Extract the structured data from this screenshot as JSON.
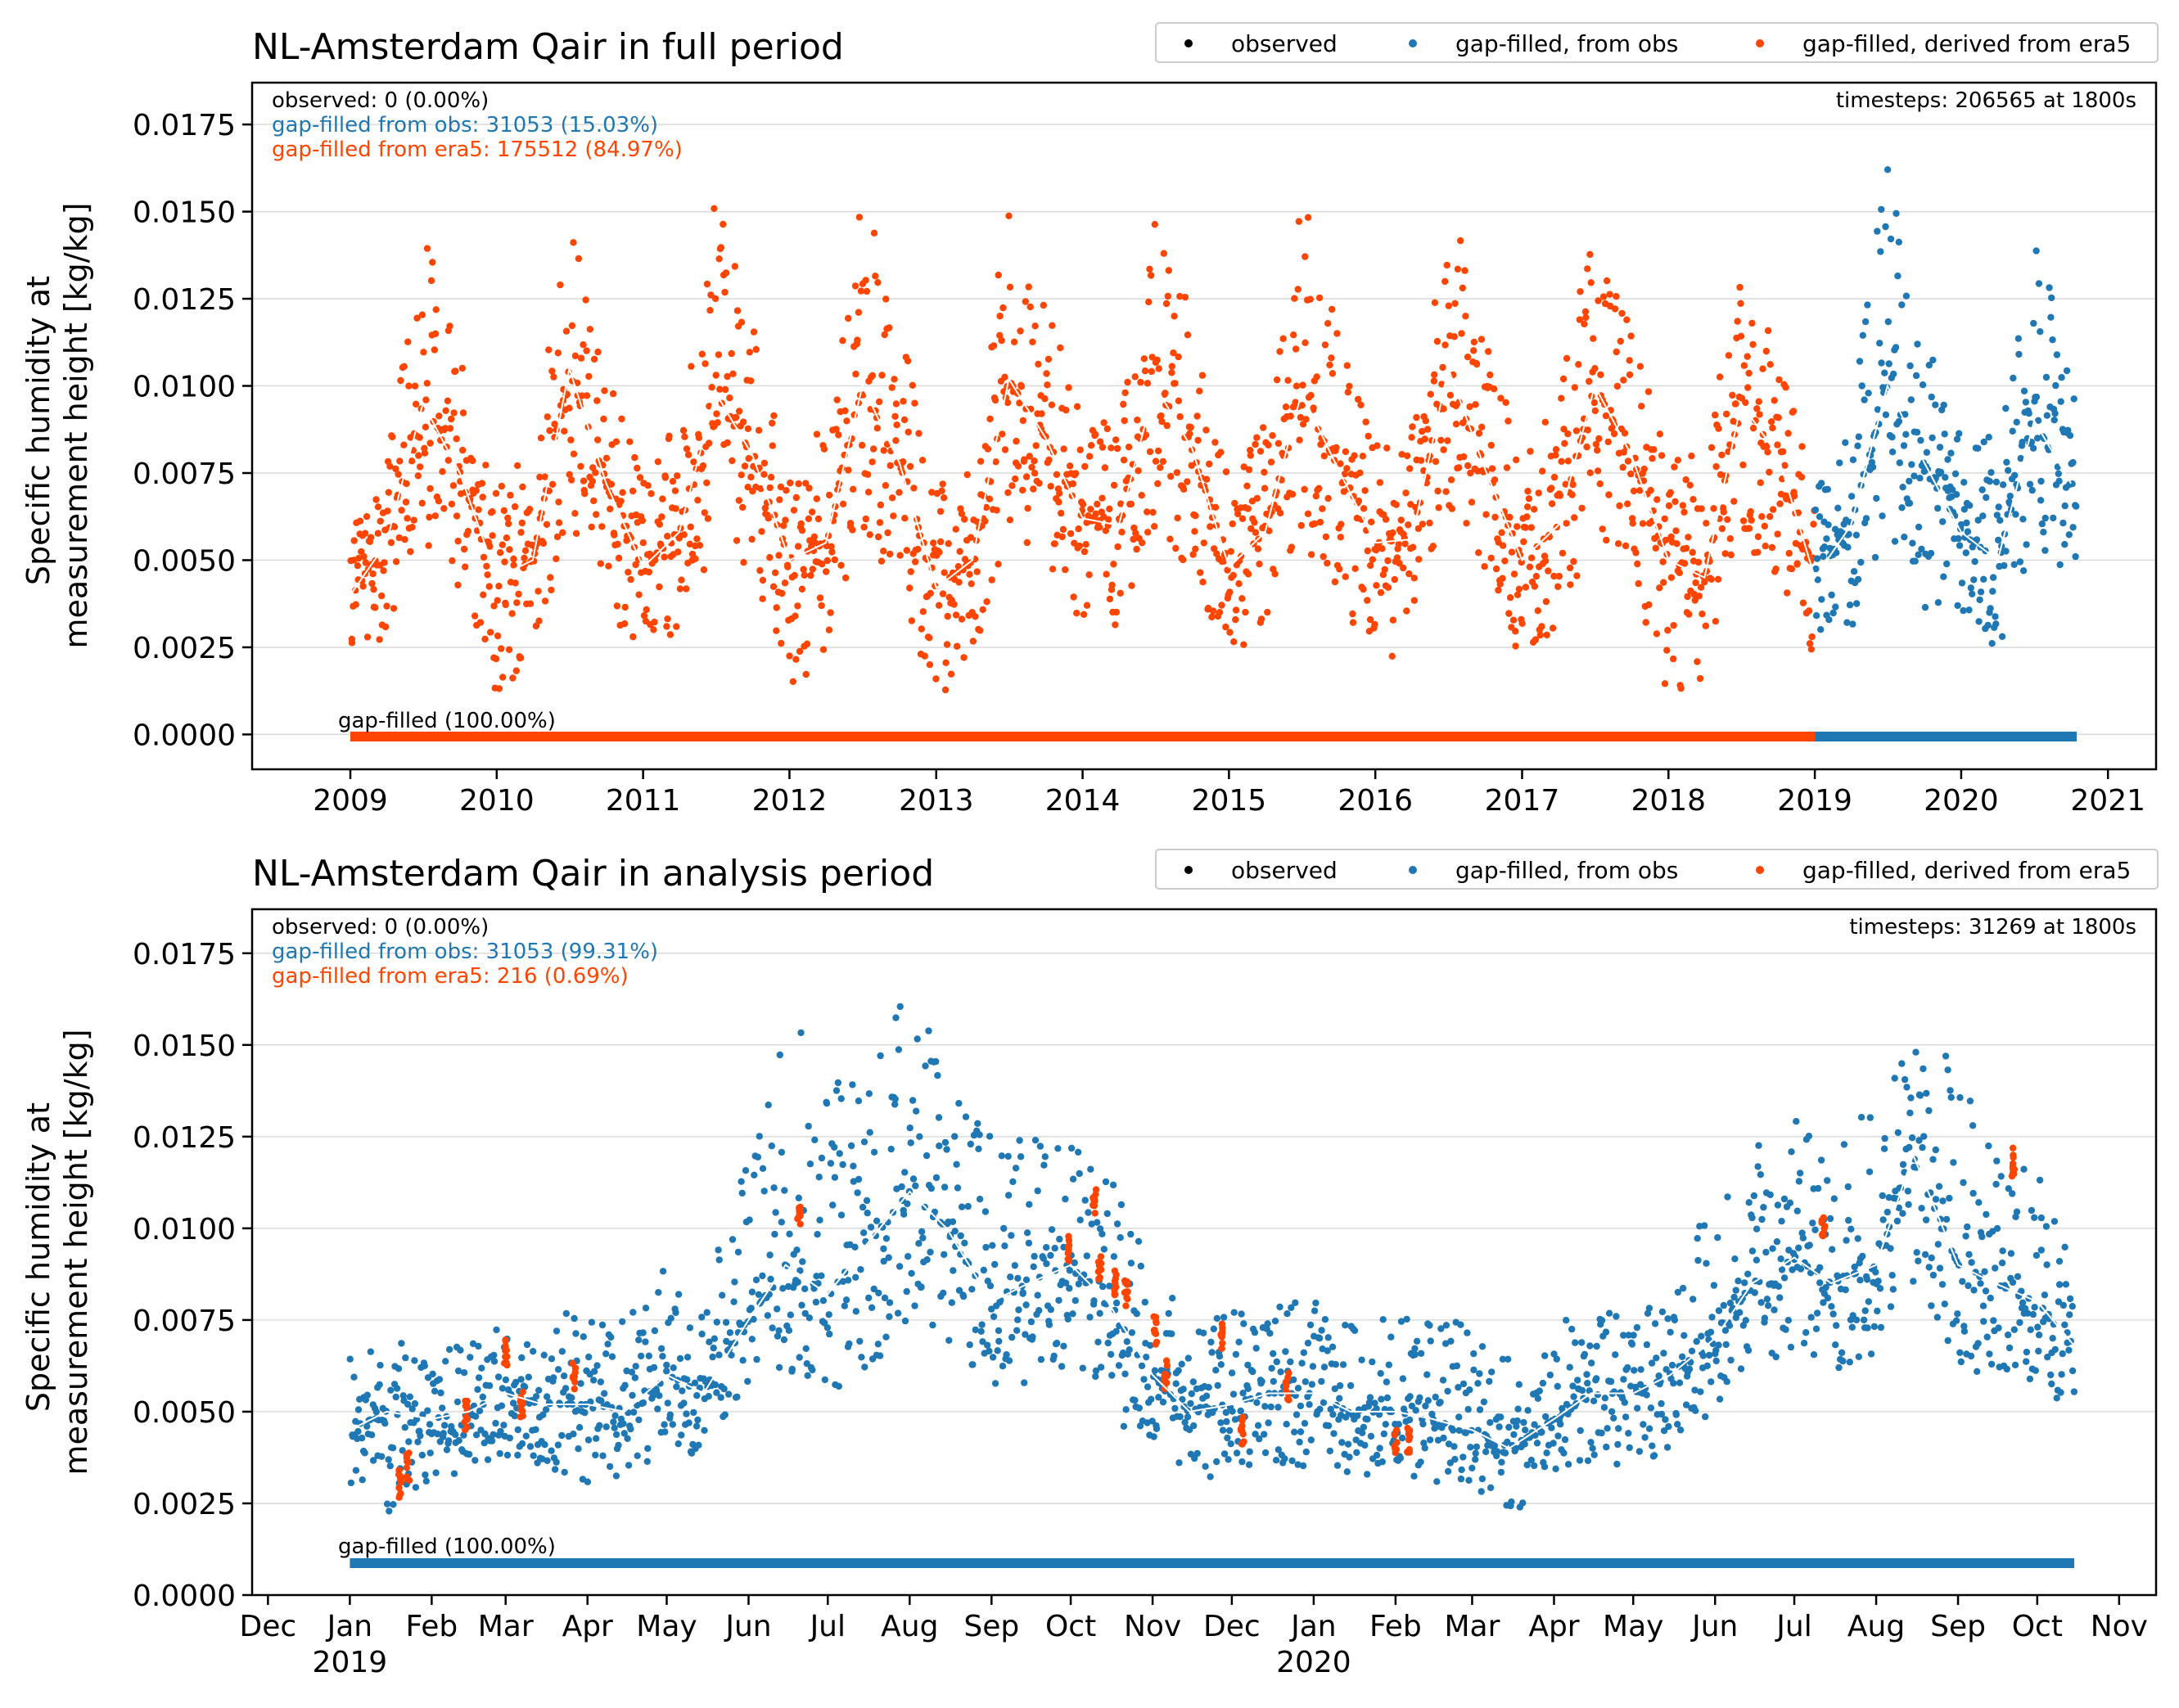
{
  "colors": {
    "observed": "#000000",
    "gapfilled_obs": "#1f77b4",
    "gapfilled_era5": "#ff4500",
    "rolling_mean": "#ffffff",
    "grid": "#d9d9d9"
  },
  "legend": {
    "observed": "observed",
    "gapfilled_obs": "gap-filled, from obs",
    "gapfilled_era5": "gap-filled, derived from era5"
  },
  "chart_data": [
    {
      "type": "scatter",
      "title": "NL-Amsterdam Qair in full period",
      "ylabel": [
        "Specific humidity at",
        "measurement height [kg/kg]"
      ],
      "ylim": [
        -0.001,
        0.0187
      ],
      "yticks": [
        "0.0000",
        "0.0025",
        "0.0050",
        "0.0075",
        "0.0100",
        "0.0125",
        "0.0150",
        "0.0175"
      ],
      "xlim": [
        "2008-05-01",
        "2021-05-01"
      ],
      "xticks": [
        "2009",
        "2010",
        "2011",
        "2012",
        "2013",
        "2014",
        "2015",
        "2016",
        "2017",
        "2018",
        "2019",
        "2020",
        "2021"
      ],
      "stats": {
        "observed": "observed: 0 (0.00%)",
        "obs": "gap-filled from obs: 31053 (15.03%)",
        "era5": "gap-filled from era5: 175512 (84.97%)",
        "timesteps": "timesteps: 206565 at 1800s"
      },
      "bar_label": "gap-filled (100.00%)",
      "grid": "horizontal",
      "legend_position": "top-right, above plot",
      "series_ranges": [
        {
          "name": "gap-filled, derived from era5",
          "start": "2009-01-01",
          "end": "2019-01-01"
        },
        {
          "name": "gap-filled, from obs",
          "start": "2019-01-01",
          "end": "2020-10-15"
        }
      ],
      "x": [
        "2009-01",
        "2009-04",
        "2009-07",
        "2009-10",
        "2010-01",
        "2010-04",
        "2010-07",
        "2010-10",
        "2011-01",
        "2011-04",
        "2011-07",
        "2011-10",
        "2012-01",
        "2012-04",
        "2012-07",
        "2012-10",
        "2013-01",
        "2013-04",
        "2013-07",
        "2013-10",
        "2014-01",
        "2014-04",
        "2014-07",
        "2014-10",
        "2015-01",
        "2015-04",
        "2015-07",
        "2015-10",
        "2016-01",
        "2016-04",
        "2016-07",
        "2016-10",
        "2017-01",
        "2017-04",
        "2017-07",
        "2017-10",
        "2018-01",
        "2018-04",
        "2018-07",
        "2018-10",
        "2019-01",
        "2019-04",
        "2019-07",
        "2019-10",
        "2020-01",
        "2020-04",
        "2020-07",
        "2020-10"
      ],
      "mean": [
        0.004,
        0.0055,
        0.0095,
        0.0075,
        0.0045,
        0.005,
        0.0105,
        0.0072,
        0.0048,
        0.0058,
        0.0098,
        0.008,
        0.005,
        0.0055,
        0.01,
        0.0078,
        0.0042,
        0.005,
        0.0102,
        0.0085,
        0.0062,
        0.006,
        0.01,
        0.0082,
        0.0048,
        0.0058,
        0.0098,
        0.0076,
        0.0055,
        0.0056,
        0.0105,
        0.0076,
        0.005,
        0.006,
        0.01,
        0.008,
        0.005,
        0.0045,
        0.0095,
        0.008,
        0.0045,
        0.006,
        0.01,
        0.0078,
        0.0058,
        0.005,
        0.009,
        0.0072
      ],
      "upper": [
        0.006,
        0.008,
        0.0145,
        0.011,
        0.007,
        0.0085,
        0.015,
        0.0105,
        0.0075,
        0.009,
        0.0155,
        0.012,
        0.0075,
        0.009,
        0.016,
        0.012,
        0.007,
        0.0085,
        0.0155,
        0.0125,
        0.009,
        0.009,
        0.015,
        0.012,
        0.0075,
        0.009,
        0.0165,
        0.0115,
        0.0085,
        0.009,
        0.0155,
        0.0115,
        0.008,
        0.0095,
        0.015,
        0.012,
        0.008,
        0.008,
        0.0135,
        0.0115,
        0.007,
        0.009,
        0.0168,
        0.0115,
        0.0085,
        0.009,
        0.015,
        0.0105
      ],
      "lower": [
        0.0015,
        0.003,
        0.0055,
        0.004,
        0.001,
        0.002,
        0.006,
        0.0035,
        0.002,
        0.003,
        0.0055,
        0.0045,
        0.0008,
        0.0025,
        0.006,
        0.004,
        0.001,
        0.002,
        0.006,
        0.005,
        0.003,
        0.003,
        0.006,
        0.0045,
        0.002,
        0.003,
        0.0055,
        0.004,
        0.002,
        0.0025,
        0.0065,
        0.004,
        0.002,
        0.003,
        0.006,
        0.0045,
        0.001,
        0.0015,
        0.0055,
        0.0045,
        0.002,
        0.003,
        0.006,
        0.0035,
        0.003,
        0.002,
        0.0055,
        0.0045
      ]
    },
    {
      "type": "scatter",
      "title": "NL-Amsterdam Qair in analysis period",
      "ylabel": [
        "Specific humidity at",
        "measurement height [kg/kg]"
      ],
      "ylim": [
        0.0,
        0.0187
      ],
      "yticks": [
        "0.0000",
        "0.0025",
        "0.0050",
        "0.0075",
        "0.0100",
        "0.0125",
        "0.0150",
        "0.0175"
      ],
      "xlim": [
        "2018-11-25",
        "2020-11-15"
      ],
      "xticks": [
        {
          "date": "2018-12-01",
          "label": "Dec"
        },
        {
          "date": "2019-01-01",
          "label": "Jan",
          "year": "2019"
        },
        {
          "date": "2019-02-01",
          "label": "Feb"
        },
        {
          "date": "2019-03-01",
          "label": "Mar"
        },
        {
          "date": "2019-04-01",
          "label": "Apr"
        },
        {
          "date": "2019-05-01",
          "label": "May"
        },
        {
          "date": "2019-06-01",
          "label": "Jun"
        },
        {
          "date": "2019-07-01",
          "label": "Jul"
        },
        {
          "date": "2019-08-01",
          "label": "Aug"
        },
        {
          "date": "2019-09-01",
          "label": "Sep"
        },
        {
          "date": "2019-10-01",
          "label": "Oct"
        },
        {
          "date": "2019-11-01",
          "label": "Nov"
        },
        {
          "date": "2019-12-01",
          "label": "Dec"
        },
        {
          "date": "2020-01-01",
          "label": "Jan",
          "year": "2020"
        },
        {
          "date": "2020-02-01",
          "label": "Feb"
        },
        {
          "date": "2020-03-01",
          "label": "Mar"
        },
        {
          "date": "2020-04-01",
          "label": "Apr"
        },
        {
          "date": "2020-05-01",
          "label": "May"
        },
        {
          "date": "2020-06-01",
          "label": "Jun"
        },
        {
          "date": "2020-07-01",
          "label": "Jul"
        },
        {
          "date": "2020-08-01",
          "label": "Aug"
        },
        {
          "date": "2020-09-01",
          "label": "Sep"
        },
        {
          "date": "2020-10-01",
          "label": "Oct"
        },
        {
          "date": "2020-11-01",
          "label": "Nov"
        }
      ],
      "stats": {
        "observed": "observed: 0 (0.00%)",
        "obs": "gap-filled from obs: 31053 (99.31%)",
        "era5": "gap-filled from era5: 216 (0.69%)",
        "timesteps": "timesteps: 31269 at 1800s"
      },
      "bar_label": "gap-filled (100.00%)",
      "grid": "horizontal",
      "legend_position": "top-right, above plot",
      "series_ranges": [
        {
          "name": "gap-filled, from obs",
          "start": "2019-01-01",
          "end": "2020-10-15"
        }
      ],
      "x": [
        "2019-01-01",
        "2019-01-15",
        "2019-02-01",
        "2019-02-15",
        "2019-03-01",
        "2019-03-15",
        "2019-04-01",
        "2019-04-15",
        "2019-05-01",
        "2019-05-15",
        "2019-06-01",
        "2019-06-15",
        "2019-07-01",
        "2019-07-15",
        "2019-08-01",
        "2019-08-15",
        "2019-09-01",
        "2019-09-15",
        "2019-10-01",
        "2019-10-15",
        "2019-11-01",
        "2019-11-15",
        "2019-12-01",
        "2019-12-15",
        "2020-01-01",
        "2020-01-15",
        "2020-02-01",
        "2020-02-15",
        "2020-03-01",
        "2020-03-15",
        "2020-04-01",
        "2020-04-15",
        "2020-05-01",
        "2020-05-15",
        "2020-06-01",
        "2020-06-15",
        "2020-07-01",
        "2020-07-15",
        "2020-08-01",
        "2020-08-15",
        "2020-09-01",
        "2020-09-15",
        "2020-10-01",
        "2020-10-15"
      ],
      "mean": [
        0.0045,
        0.005,
        0.0048,
        0.005,
        0.0055,
        0.0052,
        0.0052,
        0.005,
        0.006,
        0.0055,
        0.0075,
        0.009,
        0.0082,
        0.0095,
        0.011,
        0.01,
        0.008,
        0.0085,
        0.009,
        0.008,
        0.006,
        0.005,
        0.0052,
        0.0055,
        0.0055,
        0.005,
        0.005,
        0.0048,
        0.0045,
        0.004,
        0.0048,
        0.0055,
        0.0055,
        0.006,
        0.007,
        0.0085,
        0.0092,
        0.0085,
        0.009,
        0.012,
        0.009,
        0.0085,
        0.008,
        0.0068
      ],
      "upper": [
        0.0065,
        0.0068,
        0.007,
        0.0068,
        0.0075,
        0.0075,
        0.008,
        0.0075,
        0.009,
        0.0082,
        0.012,
        0.0165,
        0.014,
        0.015,
        0.0168,
        0.015,
        0.0125,
        0.0125,
        0.0125,
        0.0115,
        0.009,
        0.0075,
        0.0078,
        0.008,
        0.008,
        0.0075,
        0.0078,
        0.0075,
        0.0075,
        0.0065,
        0.0075,
        0.008,
        0.0085,
        0.009,
        0.011,
        0.0125,
        0.013,
        0.0125,
        0.0135,
        0.015,
        0.015,
        0.012,
        0.0115,
        0.0095
      ],
      "lower": [
        0.003,
        0.002,
        0.003,
        0.0035,
        0.0038,
        0.0035,
        0.003,
        0.0032,
        0.004,
        0.0038,
        0.005,
        0.006,
        0.0055,
        0.006,
        0.0075,
        0.007,
        0.0055,
        0.0055,
        0.006,
        0.005,
        0.0038,
        0.0032,
        0.0032,
        0.0035,
        0.0035,
        0.003,
        0.0032,
        0.003,
        0.003,
        0.002,
        0.003,
        0.0035,
        0.0035,
        0.004,
        0.005,
        0.006,
        0.0065,
        0.006,
        0.0065,
        0.0085,
        0.006,
        0.0058,
        0.0055,
        0.005
      ],
      "era5_points": [
        {
          "x": "2019-01-20",
          "y": 0.003
        },
        {
          "x": "2019-01-23",
          "y": 0.0035
        },
        {
          "x": "2019-02-14",
          "y": 0.0049
        },
        {
          "x": "2019-03-01",
          "y": 0.0066
        },
        {
          "x": "2019-03-07",
          "y": 0.0052
        },
        {
          "x": "2019-03-27",
          "y": 0.006
        },
        {
          "x": "2019-06-20",
          "y": 0.0105
        },
        {
          "x": "2019-09-30",
          "y": 0.0095
        },
        {
          "x": "2019-10-10",
          "y": 0.0108
        },
        {
          "x": "2019-10-12",
          "y": 0.009
        },
        {
          "x": "2019-10-18",
          "y": 0.0085
        },
        {
          "x": "2019-10-22",
          "y": 0.0082
        },
        {
          "x": "2019-11-02",
          "y": 0.0072
        },
        {
          "x": "2019-11-06",
          "y": 0.006
        },
        {
          "x": "2019-11-27",
          "y": 0.007
        },
        {
          "x": "2019-12-05",
          "y": 0.0045
        },
        {
          "x": "2019-12-22",
          "y": 0.0057
        },
        {
          "x": "2020-02-01",
          "y": 0.0042
        },
        {
          "x": "2020-02-06",
          "y": 0.0042
        },
        {
          "x": "2020-07-12",
          "y": 0.01
        },
        {
          "x": "2020-09-22",
          "y": 0.0118
        }
      ]
    }
  ]
}
